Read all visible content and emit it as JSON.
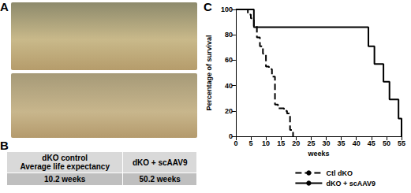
{
  "panel_labels": [
    "A",
    "B",
    "C"
  ],
  "table": {
    "header": [
      [
        "dKO control",
        "Average life expectancy"
      ],
      [
        "dKO + scAAV9"
      ]
    ],
    "rows": [
      [
        "10.2 weeks",
        "50.2 weeks"
      ]
    ]
  },
  "chart_data": {
    "type": "line",
    "x_label": "weeks",
    "y_label": "Percentage of survival",
    "xlim": [
      0,
      55
    ],
    "xticks": [
      0,
      5,
      10,
      15,
      20,
      25,
      30,
      35,
      40,
      45,
      50,
      55
    ],
    "ylim": [
      0,
      100
    ],
    "yticks": [
      0,
      20,
      40,
      60,
      80,
      100
    ],
    "grid": false,
    "legend": "lower right",
    "series": [
      {
        "name": "Ctl dKO",
        "color": "#000000",
        "line_style": "dashed",
        "x": [
          0,
          4,
          5,
          6,
          7,
          8,
          9,
          10,
          11,
          12,
          13,
          14,
          16,
          17,
          18,
          19
        ],
        "values": [
          100,
          96,
          93,
          87,
          78,
          71,
          65,
          55,
          53,
          47,
          25,
          22,
          20,
          18,
          5,
          0
        ]
      },
      {
        "name": "dKO + scAAV9",
        "color": "#000000",
        "line_style": "solid",
        "x": [
          0,
          6,
          44,
          46,
          49,
          51,
          54,
          55
        ],
        "values": [
          100,
          86,
          71,
          57,
          43,
          29,
          14,
          0
        ]
      }
    ]
  }
}
